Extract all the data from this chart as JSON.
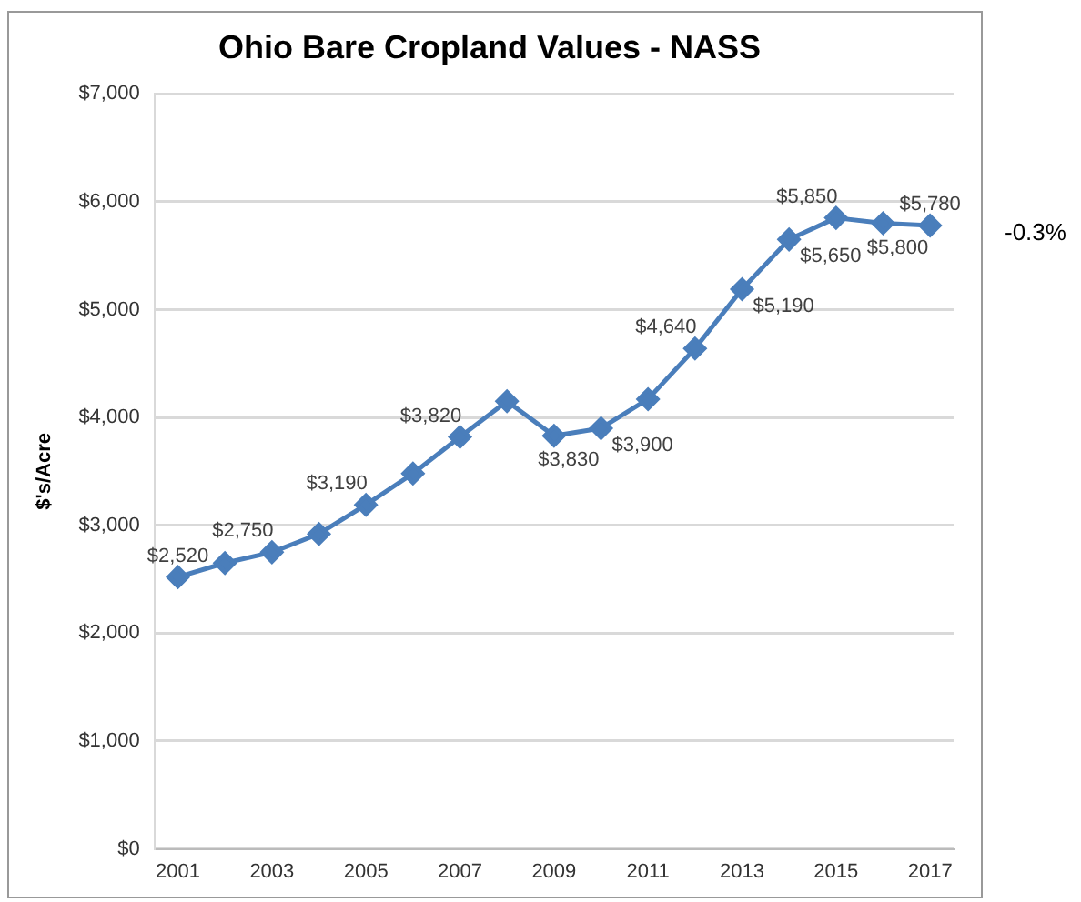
{
  "chart_data": {
    "type": "line",
    "title": "Ohio Bare Cropland Values - NASS",
    "ylabel": "$'s/Acre",
    "categories": [
      "2001",
      null,
      "2003",
      null,
      "2005",
      null,
      "2007",
      null,
      "2009",
      null,
      "2011",
      null,
      "2013",
      null,
      "2015",
      null,
      "2017"
    ],
    "series": [
      {
        "color": "#4a7ebb",
        "values": [
          2520,
          2650,
          2750,
          2920,
          3190,
          3480,
          3820,
          4150,
          3830,
          3900,
          4170,
          4640,
          5190,
          5650,
          5850,
          5800,
          5780
        ],
        "value_labels": [
          "$2,520",
          null,
          "$2,750",
          null,
          "$3,190",
          null,
          "$3,820",
          null,
          "$3,830",
          "$3,900",
          null,
          "$4,640",
          "$5,190",
          "$5,650",
          "$5,850",
          "$5,800",
          "$5,780"
        ]
      }
    ],
    "ylim": [
      0,
      7000
    ],
    "yticks": [
      {
        "value": 0,
        "label": "$0"
      },
      {
        "value": 1000,
        "label": "$1,000"
      },
      {
        "value": 2000,
        "label": "$2,000"
      },
      {
        "value": 3000,
        "label": "$3,000"
      },
      {
        "value": 4000,
        "label": "$4,000"
      },
      {
        "value": 5000,
        "label": "$5,000"
      },
      {
        "value": 6000,
        "label": "$6,000"
      },
      {
        "value": 7000,
        "label": "$7,000"
      }
    ],
    "grid": "y",
    "marker": "diamond",
    "line_style": "solid",
    "legend": false,
    "annotations": [
      "-0.3%"
    ]
  }
}
